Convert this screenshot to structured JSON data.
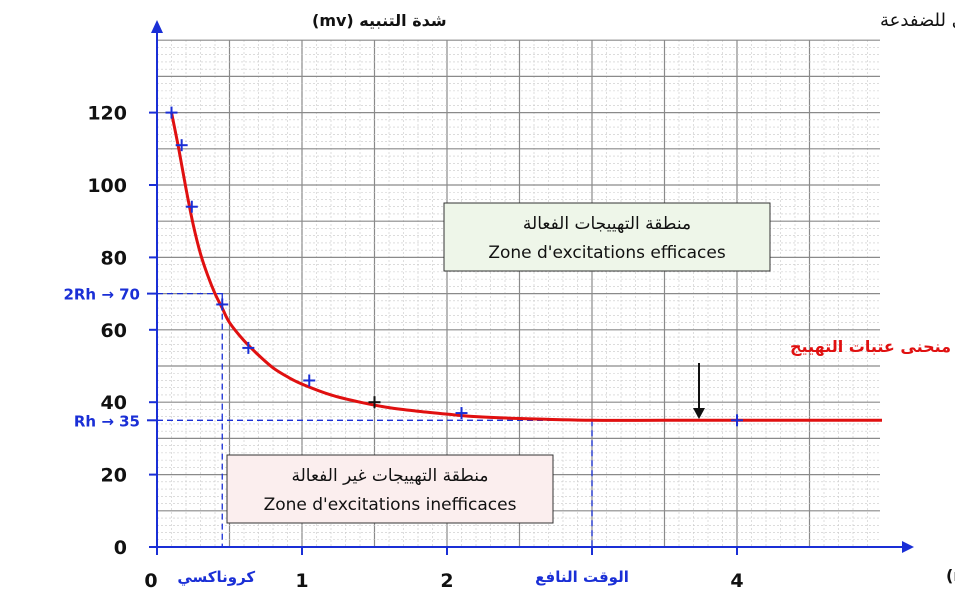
{
  "chart_data": {
    "type": "line",
    "title": "منحنى اهتياجية العصب الوركي للضفدعة",
    "ylabel": "شدة التنبيه (mv)",
    "xlabel": "مدة التنبيه (ms)",
    "xlim": [
      0,
      5
    ],
    "ylim": [
      0,
      140
    ],
    "y_ticks": [
      "0",
      "20",
      "40",
      "60",
      "80",
      "100",
      "120"
    ],
    "x_ticks": [
      {
        "x": 0,
        "label": "0"
      },
      {
        "x": 1,
        "label": "1"
      },
      {
        "x": 2,
        "label": "2"
      },
      {
        "x": 4,
        "label": "4"
      }
    ],
    "x_special_labels": [
      {
        "x": 0.45,
        "label": "كروناكسي"
      },
      {
        "x": 3,
        "label": "الوقت النافع"
      }
    ],
    "y_special_labels": [
      {
        "y": 70,
        "label": "2Rh → 70"
      },
      {
        "y": 35,
        "label": "Rh → 35"
      }
    ],
    "grid": true,
    "series": [
      {
        "name": "منحنى عتبات التهييج",
        "color": "#e01010",
        "x": [
          0.1,
          0.15,
          0.2,
          0.25,
          0.3,
          0.35,
          0.4,
          0.45,
          0.5,
          0.6,
          0.7,
          0.8,
          0.9,
          1.0,
          1.2,
          1.4,
          1.6,
          1.8,
          2.0,
          2.2,
          2.5,
          3.0,
          3.5,
          4.0,
          4.5,
          5.0
        ],
        "y": [
          120,
          110,
          99,
          89,
          81,
          75,
          70,
          66,
          62,
          57,
          53,
          49.5,
          47,
          45,
          42,
          40,
          38.5,
          37.5,
          36.7,
          36,
          35.5,
          35,
          35,
          35,
          35,
          35
        ]
      }
    ],
    "marked_points": {
      "x": [
        0.1,
        0.17,
        0.24,
        0.45,
        0.63,
        1.05,
        1.5,
        2.1,
        4.0
      ],
      "y": [
        120,
        111,
        94,
        67,
        55,
        46,
        40,
        37,
        35
      ]
    },
    "regions": {
      "effective": [
        "منطقة التهييجات الفعالة",
        "Zone d'excitations efficaces"
      ],
      "ineffective": [
        "منطقة التهييجات غير الفعالة",
        "Zone d'excitations inefficaces"
      ]
    },
    "colors": {
      "curve": "#e01010",
      "axis": "#1a2fd6",
      "grid_major": "#8a8a8a",
      "grid_minor": "#c8c8c8",
      "effective_box_bg": "#eef6e9",
      "ineffective_box_bg": "#fbeeee"
    }
  }
}
